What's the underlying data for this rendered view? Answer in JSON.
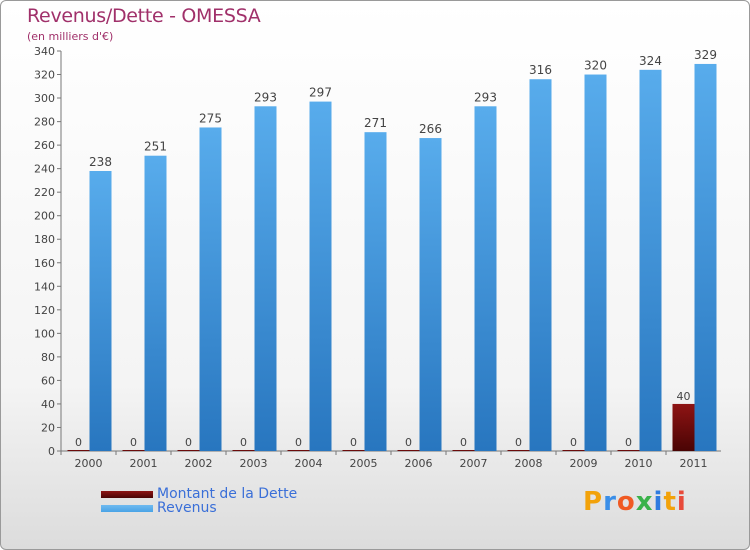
{
  "header": {
    "title": "Revenus/Dette - OMESSA",
    "subtitle": "(en milliers d'€)"
  },
  "colors": {
    "debt": "#7a0a0a",
    "revenue": "#4aa3e6",
    "text": "#a0306a",
    "legend_text": "#3a6fd8"
  },
  "legend": {
    "debt_label": "Montant de la Dette",
    "revenue_label": "Revenus"
  },
  "logo": {
    "text": "Proxiti",
    "letter_colors": [
      "#f2a20a",
      "#3a8ee8",
      "#f05a23",
      "#3ab24a",
      "#2f7be0",
      "#f2a20a",
      "#e84a3a"
    ]
  },
  "chart_data": {
    "type": "bar",
    "categories": [
      "2000",
      "2001",
      "2002",
      "2003",
      "2004",
      "2005",
      "2006",
      "2007",
      "2008",
      "2009",
      "2010",
      "2011"
    ],
    "series": [
      {
        "name": "Montant de la Dette",
        "values": [
          0,
          0,
          0,
          0,
          0,
          0,
          0,
          0,
          0,
          0,
          0,
          40
        ]
      },
      {
        "name": "Revenus",
        "values": [
          238,
          251,
          275,
          293,
          297,
          271,
          266,
          293,
          316,
          320,
          324,
          329
        ]
      }
    ],
    "ylim": [
      0,
      340
    ],
    "yticks": [
      0,
      20,
      40,
      60,
      80,
      100,
      120,
      140,
      160,
      180,
      200,
      220,
      240,
      260,
      280,
      300,
      320,
      340
    ],
    "grid": false,
    "legend_position": "bottom-left"
  }
}
